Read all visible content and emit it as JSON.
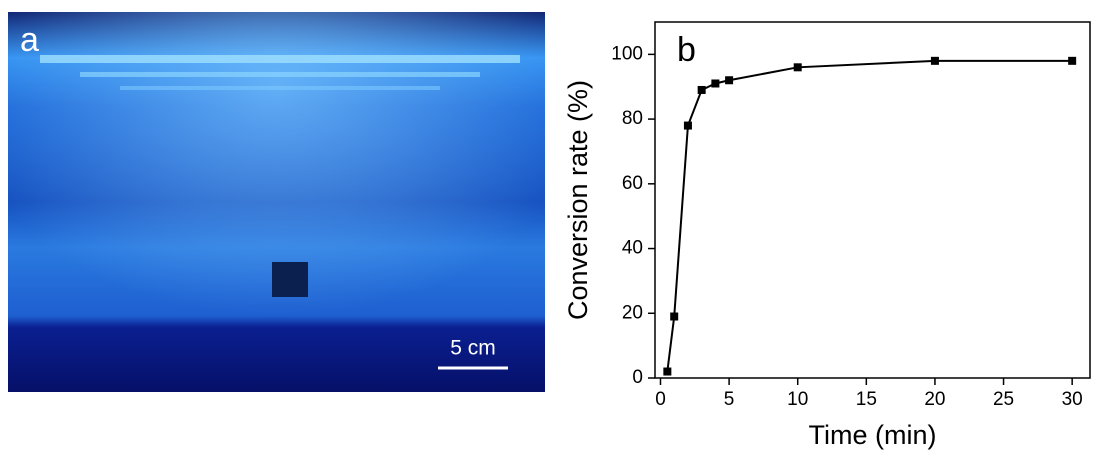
{
  "panel_a": {
    "label": "a",
    "scale_bar": "5 cm"
  },
  "chart_data": {
    "type": "line",
    "panel_label": "b",
    "x_label": "Time (min)",
    "y_label": "Conversion rate (%)",
    "x": [
      0.5,
      1,
      2,
      3,
      4,
      5,
      10,
      20,
      30
    ],
    "values": [
      2,
      19,
      78,
      89,
      91,
      92,
      96,
      98,
      98
    ],
    "color": "#000000",
    "xlim": [
      -0.4,
      31.3
    ],
    "xticks": [
      0,
      5,
      10,
      15,
      20,
      25,
      30
    ],
    "ylim": [
      0,
      110
    ],
    "yticks": [
      0,
      20,
      40,
      60,
      80,
      100
    ]
  }
}
